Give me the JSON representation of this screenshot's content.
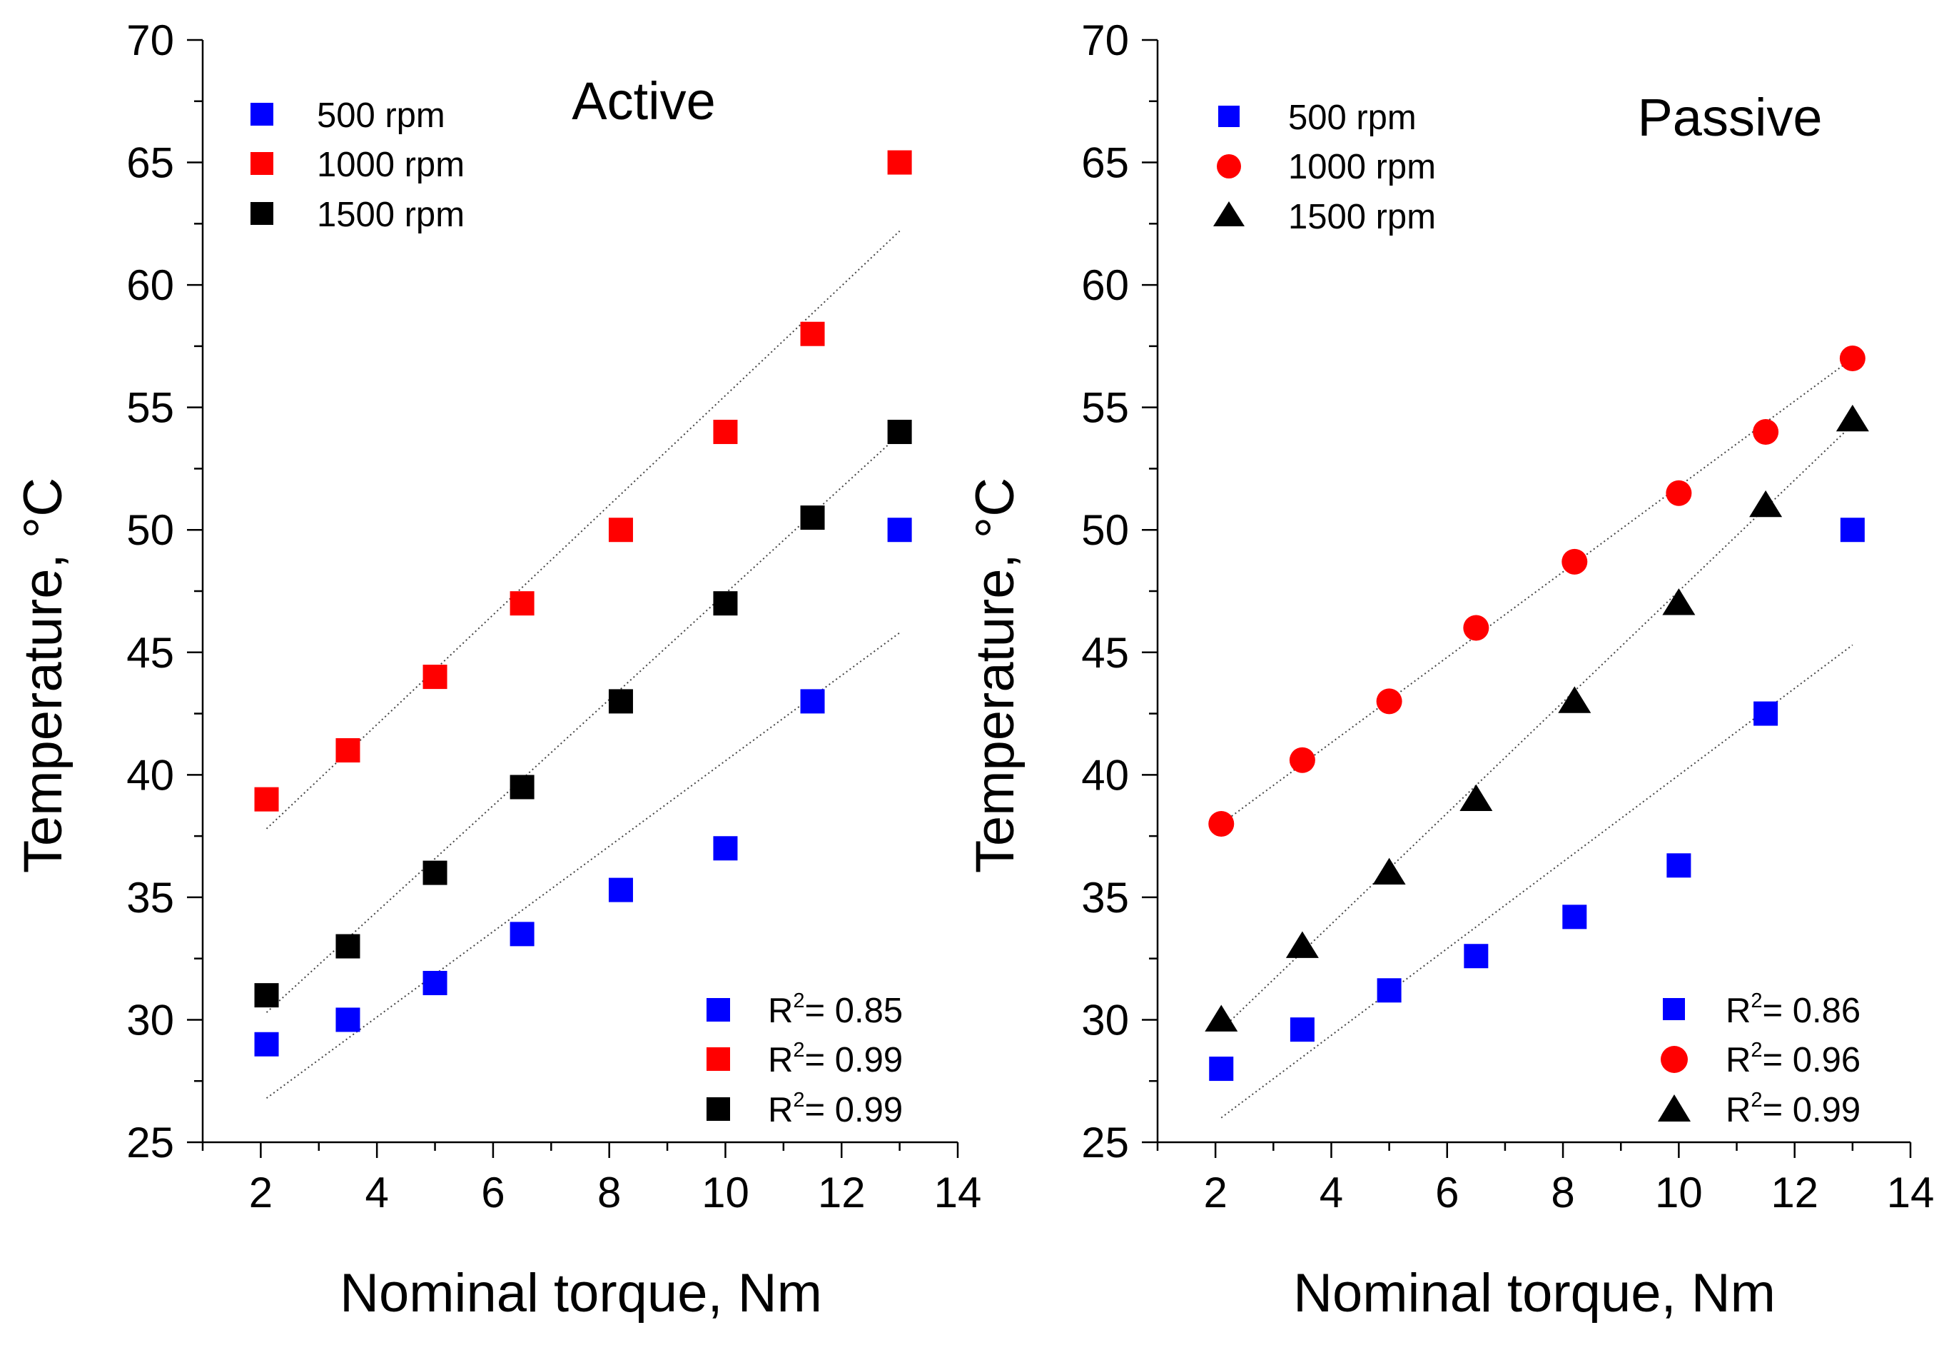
{
  "chart_data": [
    {
      "type": "scatter",
      "title": "Active",
      "xlabel": "Nominal torque, Nm",
      "ylabel": "Temperature, °C",
      "xlim": [
        1,
        14
      ],
      "ylim": [
        25,
        70
      ],
      "x_ticks": [
        "2",
        "4",
        "6",
        "8",
        "10",
        "12",
        "14"
      ],
      "y_ticks": [
        "25",
        "30",
        "35",
        "40",
        "45",
        "50",
        "55",
        "60",
        "65",
        "70"
      ],
      "grid": false,
      "series": [
        {
          "name": "500 rpm",
          "marker": "square",
          "color": "#0000ff",
          "x": [
            2.1,
            3.5,
            5.0,
            6.5,
            8.2,
            10.0,
            11.5,
            13.0
          ],
          "y": [
            29.0,
            30.0,
            31.5,
            33.5,
            35.3,
            37.0,
            43.0,
            50.0
          ],
          "r2_label": "R",
          "r2_sup": "2",
          "r2_value": "= 0.85",
          "fit": {
            "x": [
              2.1,
              13.0
            ],
            "y": [
              26.8,
              45.8
            ]
          }
        },
        {
          "name": "1000 rpm",
          "marker": "square",
          "color": "#ff0000",
          "x": [
            2.1,
            3.5,
            5.0,
            6.5,
            8.2,
            10.0,
            11.5,
            13.0
          ],
          "y": [
            39.0,
            41.0,
            44.0,
            47.0,
            50.0,
            54.0,
            58.0,
            65.0
          ],
          "r2_label": "R",
          "r2_sup": "2",
          "r2_value": "= 0.99",
          "fit": {
            "x": [
              2.1,
              13.0
            ],
            "y": [
              37.8,
              62.2
            ]
          }
        },
        {
          "name": "1500 rpm",
          "marker": "square",
          "color": "#000000",
          "x": [
            2.1,
            3.5,
            5.0,
            6.5,
            8.2,
            10.0,
            11.5,
            13.0
          ],
          "y": [
            31.0,
            33.0,
            36.0,
            39.5,
            43.0,
            47.0,
            50.5,
            54.0
          ],
          "r2_label": "R",
          "r2_sup": "2",
          "r2_value": "= 0.99",
          "fit": {
            "x": [
              2.1,
              13.0
            ],
            "y": [
              30.3,
              53.9
            ]
          }
        }
      ]
    },
    {
      "type": "scatter",
      "title": "Passive",
      "xlabel": "Nominal torque, Nm",
      "ylabel": "Temperature, °C",
      "xlim": [
        1,
        14
      ],
      "ylim": [
        25,
        70
      ],
      "x_ticks": [
        "2",
        "4",
        "6",
        "8",
        "10",
        "12",
        "14"
      ],
      "y_ticks": [
        "25",
        "30",
        "35",
        "40",
        "45",
        "50",
        "55",
        "60",
        "65",
        "70"
      ],
      "grid": false,
      "series": [
        {
          "name": "500 rpm",
          "marker": "square",
          "color": "#0000ff",
          "x": [
            2.1,
            3.5,
            5.0,
            6.5,
            8.2,
            10.0,
            11.5,
            13.0
          ],
          "y": [
            28.0,
            29.6,
            31.2,
            32.6,
            34.2,
            36.3,
            42.5,
            50.0
          ],
          "r2_label": "R",
          "r2_sup": "2",
          "r2_value": "= 0.86",
          "fit": {
            "x": [
              2.1,
              13.0
            ],
            "y": [
              26.0,
              45.3
            ]
          }
        },
        {
          "name": "1000 rpm",
          "marker": "circle",
          "color": "#ff0000",
          "x": [
            2.1,
            3.5,
            5.0,
            6.5,
            8.2,
            10.0,
            11.5,
            13.0
          ],
          "y": [
            38.0,
            40.6,
            43.0,
            46.0,
            48.7,
            51.5,
            54.0,
            57.0
          ],
          "r2_label": "R",
          "r2_sup": "2",
          "r2_value": "= 0.96",
          "fit": {
            "x": [
              2.1,
              13.0
            ],
            "y": [
              38.0,
              57.0
            ]
          }
        },
        {
          "name": "1500 rpm",
          "marker": "triangle",
          "color": "#000000",
          "x": [
            2.1,
            3.5,
            5.0,
            6.5,
            8.2,
            10.0,
            11.5,
            13.0
          ],
          "y": [
            30.0,
            33.0,
            36.0,
            39.0,
            43.0,
            47.0,
            51.0,
            54.5
          ],
          "r2_label": "R",
          "r2_sup": "2",
          "r2_value": "= 0.99",
          "fit": {
            "x": [
              2.1,
              13.0
            ],
            "y": [
              29.6,
              54.3
            ]
          }
        }
      ]
    }
  ]
}
